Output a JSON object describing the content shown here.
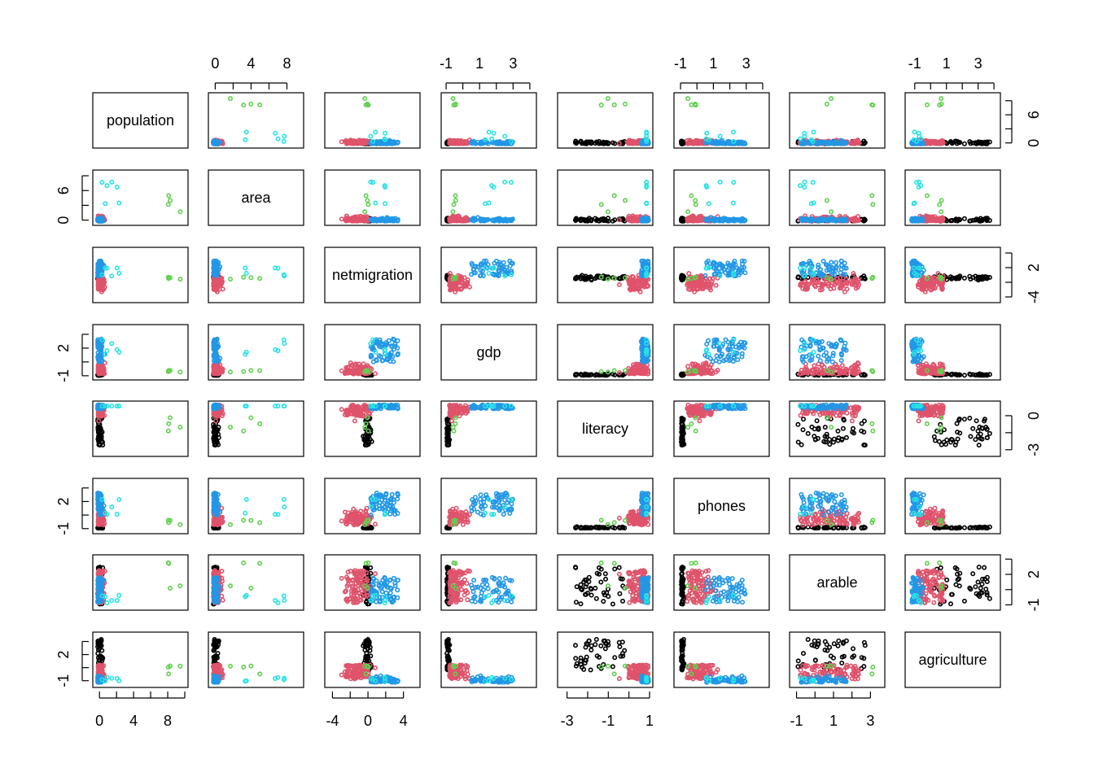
{
  "chart_data": {
    "type": "scatter",
    "kind": "scatterplot-matrix",
    "variables": [
      "population",
      "area",
      "netmigration",
      "gdp",
      "literacy",
      "phones",
      "arable",
      "agriculture"
    ],
    "ranges": {
      "population": [
        -0.4,
        10
      ],
      "area": [
        -0.4,
        9.5
      ],
      "netmigration": [
        -4.5,
        5.5
      ],
      "gdp": [
        -1.1,
        4.2
      ],
      "literacy": [
        -3.3,
        1.0
      ],
      "phones": [
        -1.2,
        4.2
      ],
      "arable": [
        -1.2,
        3.6
      ],
      "agriculture": [
        -1.4,
        4.2
      ]
    },
    "ticks": {
      "population": [
        0,
        4,
        8
      ],
      "area": [
        0,
        6
      ],
      "area_top": [
        0,
        4,
        8
      ],
      "netmigration": [
        -4,
        2
      ],
      "netmigration_bottom": [
        -4,
        0,
        4
      ],
      "gdp": [
        -1,
        2
      ],
      "gdp_top": [
        -1,
        1,
        3
      ],
      "literacy": [
        -3,
        0
      ],
      "literacy_bottom": [
        -3,
        -1,
        1
      ],
      "phones": [
        -1,
        2
      ],
      "phones_top": [
        -1,
        1,
        3
      ],
      "arable": [
        -1,
        2
      ],
      "arable_bottom": [
        -1,
        1,
        3
      ],
      "agriculture": [
        -1,
        2
      ],
      "agriculture_top": [
        -1,
        1,
        3
      ],
      "population_right": [
        0,
        6
      ]
    },
    "groups": [
      {
        "color": "#000000",
        "count": 45
      },
      {
        "color": "#DF536B",
        "count": 95
      },
      {
        "color": "#2297E6",
        "count": 60
      },
      {
        "color": "#28E2E5",
        "count": 6
      },
      {
        "color": "#61D04F",
        "count": 4
      }
    ],
    "outer_axes": {
      "top": [
        "area",
        "gdp",
        "phones",
        "agriculture"
      ],
      "bottom": [
        "population",
        "netmigration",
        "literacy",
        "arable"
      ],
      "left": [
        "area",
        "gdp",
        "phones",
        "agriculture"
      ],
      "right": [
        "population",
        "netmigration",
        "literacy",
        "arable"
      ]
    },
    "grid": false,
    "legend": "none"
  }
}
